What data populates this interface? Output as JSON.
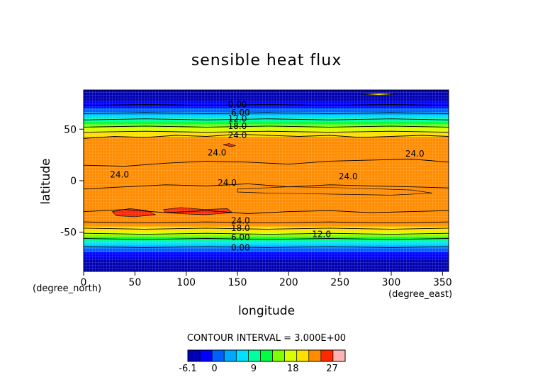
{
  "chart_data": {
    "type": "heatmap",
    "title": "sensible heat flux",
    "xlabel": "longitude",
    "ylabel": "latitude",
    "x_unit": "(degree_east)",
    "y_unit": "(degree_north)",
    "xlim": [
      0,
      356
    ],
    "ylim": [
      -88,
      88
    ],
    "x_ticks": [
      "0",
      "50",
      "100",
      "150",
      "200",
      "250",
      "300",
      "350"
    ],
    "y_ticks": [
      "-50",
      "0",
      "50"
    ],
    "contour_interval_text": "CONTOUR INTERVAL = 3.000E+00",
    "colorbar": {
      "levels": [
        -6.1,
        -3,
        0,
        3,
        6,
        9,
        12,
        15,
        18,
        21,
        24,
        27,
        30
      ],
      "tick_labels": [
        "-6.1",
        "0",
        "9",
        "18",
        "27"
      ],
      "colors": [
        "#0000b4",
        "#0000ff",
        "#0060ff",
        "#00a8ff",
        "#00e0ff",
        "#00ffa0",
        "#00ff40",
        "#80ff00",
        "#d8ff00",
        "#ffe000",
        "#ff8c00",
        "#ff2800",
        "#ffb4b4"
      ]
    },
    "latitude_profile": {
      "lat": [
        -88,
        -80,
        -72,
        -66,
        -62,
        -58,
        -55,
        -52,
        -49,
        -46,
        -42,
        -38,
        -30,
        -20,
        -10,
        0,
        8,
        16,
        24,
        32,
        40,
        44,
        47,
        50,
        53,
        56,
        60,
        64,
        68,
        72,
        78,
        88
      ],
      "value": [
        -7,
        -5,
        -2,
        2,
        6,
        10,
        14,
        18,
        21,
        23,
        25.5,
        26.5,
        26.8,
        26.5,
        26.2,
        26.4,
        27.0,
        26.6,
        26.2,
        25.8,
        25.0,
        23.8,
        22,
        19.5,
        17,
        14,
        10,
        6,
        2.5,
        -1,
        -3,
        -5.5
      ]
    },
    "contour_labels": [
      {
        "text": "0.00",
        "x": 150,
        "y": 74
      },
      {
        "text": "6.00",
        "x": 153,
        "y": 66
      },
      {
        "text": "12.0",
        "x": 150,
        "y": 60
      },
      {
        "text": "18.0",
        "x": 150,
        "y": 53
      },
      {
        "text": "24.0",
        "x": 150,
        "y": 44
      },
      {
        "text": "24.0",
        "x": 130,
        "y": 27
      },
      {
        "text": "24.0",
        "x": 323,
        "y": 26
      },
      {
        "text": "24.0",
        "x": 35,
        "y": 6
      },
      {
        "text": "24.0",
        "x": 258,
        "y": 4
      },
      {
        "text": "24.0",
        "x": 140,
        "y": -2
      },
      {
        "text": "24.0",
        "x": 153,
        "y": -39
      },
      {
        "text": "18.0",
        "x": 153,
        "y": -46
      },
      {
        "text": "12.0",
        "x": 232,
        "y": -52
      },
      {
        "text": "6.00",
        "x": 153,
        "y": -55
      },
      {
        "text": "0.00",
        "x": 153,
        "y": -65
      }
    ],
    "contour_lines": [
      {
        "level": 24,
        "points": [
          [
            0,
            41
          ],
          [
            30,
            43
          ],
          [
            60,
            42
          ],
          [
            90,
            44
          ],
          [
            120,
            43
          ],
          [
            150,
            45
          ],
          [
            180,
            44
          ],
          [
            210,
            43
          ],
          [
            240,
            44
          ],
          [
            270,
            42
          ],
          [
            300,
            43
          ],
          [
            330,
            44
          ],
          [
            356,
            43
          ]
        ]
      },
      {
        "level": 24,
        "points": [
          [
            0,
            15
          ],
          [
            40,
            14
          ],
          [
            80,
            17
          ],
          [
            120,
            19
          ],
          [
            160,
            18
          ],
          [
            200,
            16
          ],
          [
            240,
            19
          ],
          [
            280,
            20
          ],
          [
            320,
            21
          ],
          [
            356,
            18
          ]
        ]
      },
      {
        "level": 24,
        "points": [
          [
            0,
            -8
          ],
          [
            40,
            -6
          ],
          [
            80,
            -4
          ],
          [
            120,
            -5
          ],
          [
            160,
            -3
          ],
          [
            200,
            -6
          ],
          [
            240,
            -4
          ],
          [
            280,
            -5
          ],
          [
            320,
            -6
          ],
          [
            356,
            -7
          ]
        ]
      },
      {
        "level": 24,
        "points": [
          [
            0,
            -30
          ],
          [
            40,
            -28
          ],
          [
            80,
            -31
          ],
          [
            120,
            -29
          ],
          [
            160,
            -32
          ],
          [
            200,
            -30
          ],
          [
            240,
            -29
          ],
          [
            280,
            -31
          ],
          [
            320,
            -30
          ],
          [
            356,
            -29
          ]
        ]
      },
      {
        "level": 21,
        "points": [
          [
            0,
            47
          ],
          [
            60,
            48
          ],
          [
            120,
            47
          ],
          [
            180,
            48
          ],
          [
            240,
            47
          ],
          [
            300,
            48
          ],
          [
            356,
            47
          ]
        ]
      },
      {
        "level": 18,
        "points": [
          [
            0,
            52
          ],
          [
            60,
            53
          ],
          [
            120,
            52
          ],
          [
            180,
            53
          ],
          [
            240,
            52
          ],
          [
            300,
            53
          ],
          [
            356,
            52
          ]
        ]
      },
      {
        "level": 12,
        "points": [
          [
            0,
            59
          ],
          [
            60,
            60
          ],
          [
            120,
            59
          ],
          [
            180,
            60
          ],
          [
            240,
            59
          ],
          [
            300,
            60
          ],
          [
            356,
            59
          ]
        ]
      },
      {
        "level": 6,
        "points": [
          [
            0,
            65
          ],
          [
            60,
            66
          ],
          [
            120,
            65
          ],
          [
            180,
            66
          ],
          [
            240,
            65
          ],
          [
            300,
            66
          ],
          [
            356,
            65
          ]
        ]
      },
      {
        "level": 0,
        "points": [
          [
            0,
            73
          ],
          [
            60,
            74
          ],
          [
            120,
            73
          ],
          [
            180,
            74
          ],
          [
            240,
            73
          ],
          [
            300,
            74
          ],
          [
            356,
            73
          ]
        ]
      },
      {
        "level": 24,
        "points": [
          [
            0,
            -40
          ],
          [
            60,
            -41
          ],
          [
            120,
            -40
          ],
          [
            180,
            -41
          ],
          [
            240,
            -40
          ],
          [
            300,
            -41
          ],
          [
            356,
            -40
          ]
        ]
      },
      {
        "level": 18,
        "points": [
          [
            0,
            -46
          ],
          [
            60,
            -47
          ],
          [
            120,
            -46
          ],
          [
            180,
            -47
          ],
          [
            240,
            -46
          ],
          [
            300,
            -47
          ],
          [
            356,
            -46
          ]
        ]
      },
      {
        "level": 12,
        "points": [
          [
            0,
            -51
          ],
          [
            60,
            -52
          ],
          [
            120,
            -51
          ],
          [
            180,
            -52
          ],
          [
            240,
            -51
          ],
          [
            300,
            -52
          ],
          [
            356,
            -51
          ]
        ]
      },
      {
        "level": 6,
        "points": [
          [
            0,
            -56
          ],
          [
            60,
            -57
          ],
          [
            120,
            -56
          ],
          [
            180,
            -57
          ],
          [
            240,
            -56
          ],
          [
            300,
            -57
          ],
          [
            356,
            -56
          ]
        ]
      },
      {
        "level": 0,
        "points": [
          [
            0,
            -64
          ],
          [
            60,
            -65
          ],
          [
            120,
            -64
          ],
          [
            180,
            -65
          ],
          [
            240,
            -64
          ],
          [
            300,
            -65
          ],
          [
            356,
            -64
          ]
        ]
      }
    ],
    "warm_patches": [
      {
        "level": 27,
        "points": [
          [
            28,
            -30
          ],
          [
            45,
            -27
          ],
          [
            62,
            -29
          ],
          [
            70,
            -33
          ],
          [
            50,
            -35
          ],
          [
            32,
            -34
          ]
        ]
      },
      {
        "level": 27,
        "points": [
          [
            78,
            -28
          ],
          [
            95,
            -26
          ],
          [
            118,
            -28
          ],
          [
            140,
            -27
          ],
          [
            145,
            -31
          ],
          [
            118,
            -33
          ],
          [
            95,
            -32
          ],
          [
            80,
            -31
          ]
        ]
      },
      {
        "level": 27,
        "points": [
          [
            136,
            35
          ],
          [
            142,
            36
          ],
          [
            148,
            34
          ],
          [
            144,
            33
          ]
        ]
      },
      {
        "level": 24.5,
        "points": [
          [
            150,
            -8
          ],
          [
            200,
            -6
          ],
          [
            260,
            -7
          ],
          [
            320,
            -9
          ],
          [
            340,
            -12
          ],
          [
            300,
            -14
          ],
          [
            240,
            -13
          ],
          [
            180,
            -12
          ],
          [
            150,
            -11
          ]
        ]
      }
    ],
    "cool_patch": {
      "level": 21,
      "points": [
        [
          270,
          84
        ],
        [
          290,
          85
        ],
        [
          305,
          84
        ],
        [
          288,
          83
        ]
      ]
    }
  }
}
